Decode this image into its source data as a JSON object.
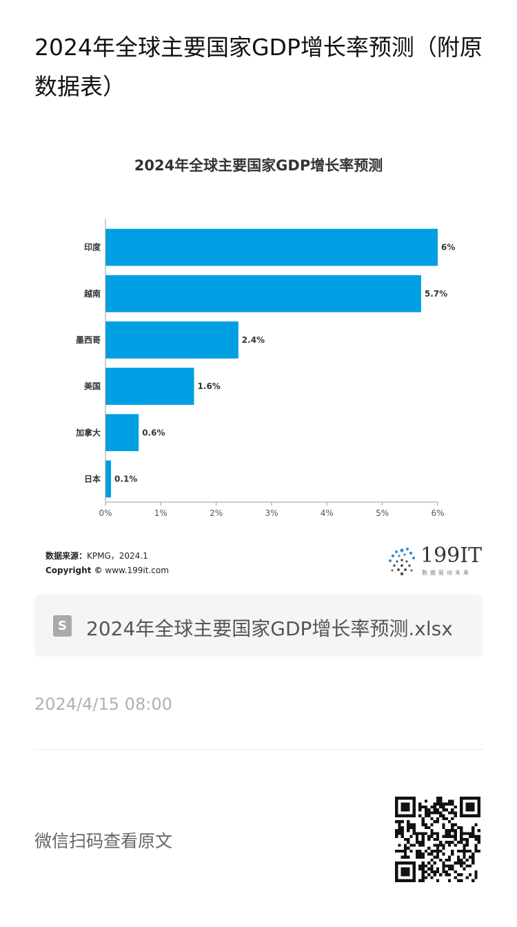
{
  "article": {
    "title": "2024年全球主要国家GDP增长率预测（附原数据表）"
  },
  "chart_data": {
    "type": "bar",
    "orientation": "horizontal",
    "title": "2024年全球主要国家GDP增长率预测",
    "categories": [
      "印度",
      "越南",
      "墨西哥",
      "美国",
      "加拿大",
      "日本"
    ],
    "values": [
      6,
      5.7,
      2.4,
      1.6,
      0.6,
      0.1
    ],
    "value_labels": [
      "6%",
      "5.7%",
      "2.4%",
      "1.6%",
      "0.6%",
      "0.1%"
    ],
    "x_ticks": [
      "0%",
      "1%",
      "2%",
      "3%",
      "4%",
      "5%",
      "6%"
    ],
    "xlim": [
      0,
      6
    ],
    "bar_color": "#009fe3",
    "grid": false,
    "xlabel": "",
    "ylabel": ""
  },
  "source": {
    "label": "数据来源：",
    "value": "KPMG，2024.1",
    "copyright_label": "Copyright ©",
    "copyright_value": "www.199it.com"
  },
  "logo": {
    "name": "199IT",
    "tagline": "数据驱动未来"
  },
  "attachment": {
    "icon_letter": "S",
    "filename": "2024年全球主要国家GDP增长率预测.xlsx"
  },
  "meta": {
    "timestamp": "2024/4/15 08:00"
  },
  "footer": {
    "scan_text": "微信扫码查看原文"
  }
}
